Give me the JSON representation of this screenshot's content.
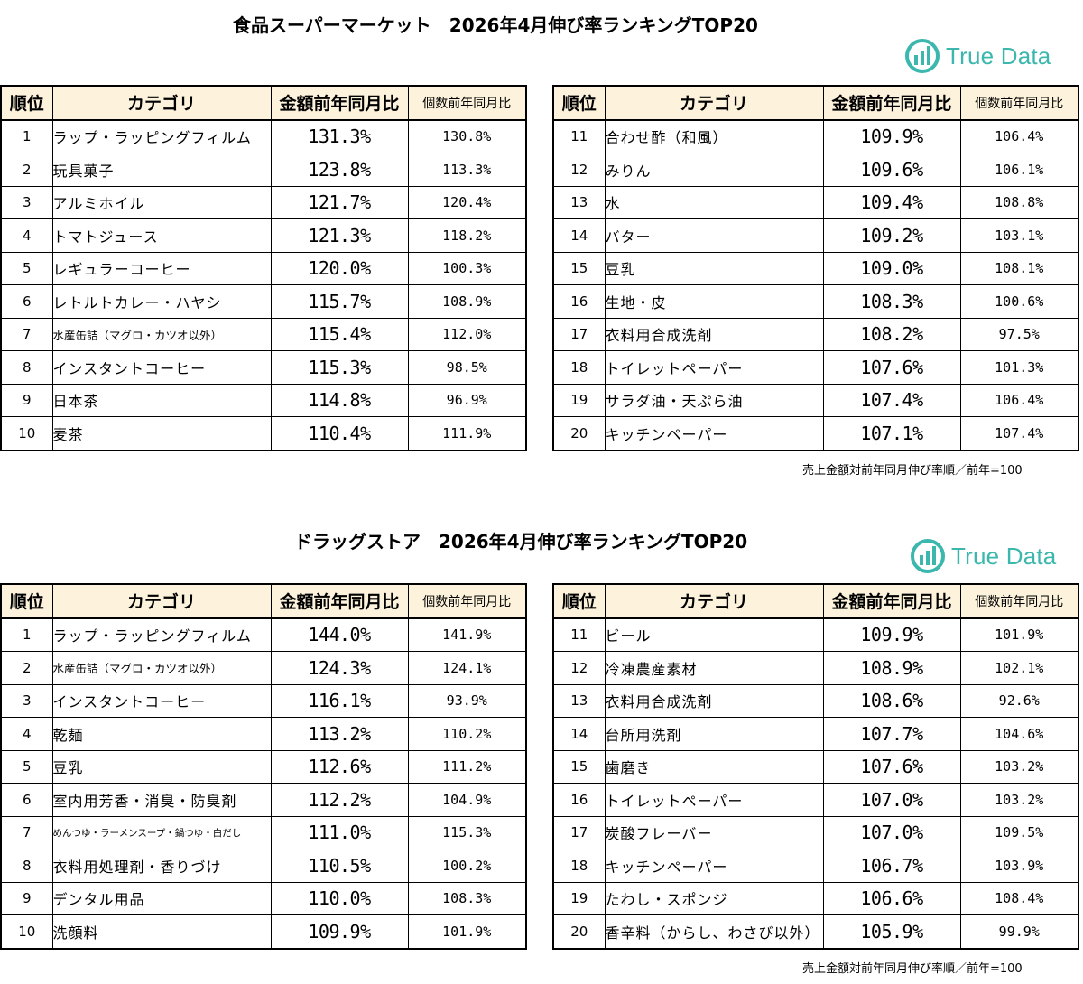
{
  "headers": {
    "rank": "順位",
    "category": "カテゴリ",
    "amount": "金額前年同月比",
    "count": "個数前年同月比"
  },
  "brand": {
    "name": "True Data",
    "color": "#3bb7ad"
  },
  "note": "売上金額対前年同月伸び率順／前年=100",
  "sections": [
    {
      "title": "食品スーパーマーケット　2026年4月伸び率ランキングTOP20",
      "left": [
        {
          "rank": "1",
          "category": "ラップ・ラッピングフィルム",
          "amount": "131.3%",
          "count": "130.8%"
        },
        {
          "rank": "2",
          "category": "玩具菓子",
          "amount": "123.8%",
          "count": "113.3%"
        },
        {
          "rank": "3",
          "category": "アルミホイル",
          "amount": "121.7%",
          "count": "120.4%"
        },
        {
          "rank": "4",
          "category": "トマトジュース",
          "amount": "121.3%",
          "count": "118.2%"
        },
        {
          "rank": "5",
          "category": "レギュラーコーヒー",
          "amount": "120.0%",
          "count": "100.3%"
        },
        {
          "rank": "6",
          "category": "レトルトカレー・ハヤシ",
          "amount": "115.7%",
          "count": "108.9%"
        },
        {
          "rank": "7",
          "category": "水産缶詰（マグロ・カツオ以外）",
          "amount": "115.4%",
          "count": "112.0%",
          "size": "small"
        },
        {
          "rank": "8",
          "category": "インスタントコーヒー",
          "amount": "115.3%",
          "count": "98.5%"
        },
        {
          "rank": "9",
          "category": "日本茶",
          "amount": "114.8%",
          "count": "96.9%"
        },
        {
          "rank": "10",
          "category": "麦茶",
          "amount": "110.4%",
          "count": "111.9%"
        }
      ],
      "right": [
        {
          "rank": "11",
          "category": "合わせ酢（和風）",
          "amount": "109.9%",
          "count": "106.4%"
        },
        {
          "rank": "12",
          "category": "みりん",
          "amount": "109.6%",
          "count": "106.1%"
        },
        {
          "rank": "13",
          "category": "水",
          "amount": "109.4%",
          "count": "108.8%"
        },
        {
          "rank": "14",
          "category": "バター",
          "amount": "109.2%",
          "count": "103.1%"
        },
        {
          "rank": "15",
          "category": "豆乳",
          "amount": "109.0%",
          "count": "108.1%"
        },
        {
          "rank": "16",
          "category": "生地・皮",
          "amount": "108.3%",
          "count": "100.6%"
        },
        {
          "rank": "17",
          "category": "衣料用合成洗剤",
          "amount": "108.2%",
          "count": "97.5%"
        },
        {
          "rank": "18",
          "category": "トイレットペーパー",
          "amount": "107.6%",
          "count": "101.3%"
        },
        {
          "rank": "19",
          "category": "サラダ油・天ぷら油",
          "amount": "107.4%",
          "count": "106.4%"
        },
        {
          "rank": "20",
          "category": "キッチンペーパー",
          "amount": "107.1%",
          "count": "107.4%"
        }
      ]
    },
    {
      "title": "ドラッグストア　2026年4月伸び率ランキングTOP20",
      "left": [
        {
          "rank": "1",
          "category": "ラップ・ラッピングフィルム",
          "amount": "144.0%",
          "count": "141.9%"
        },
        {
          "rank": "2",
          "category": "水産缶詰（マグロ・カツオ以外）",
          "amount": "124.3%",
          "count": "124.1%",
          "size": "small"
        },
        {
          "rank": "3",
          "category": "インスタントコーヒー",
          "amount": "116.1%",
          "count": "93.9%"
        },
        {
          "rank": "4",
          "category": "乾麺",
          "amount": "113.2%",
          "count": "110.2%"
        },
        {
          "rank": "5",
          "category": "豆乳",
          "amount": "112.6%",
          "count": "111.2%"
        },
        {
          "rank": "6",
          "category": "室内用芳香・消臭・防臭剤",
          "amount": "112.2%",
          "count": "104.9%"
        },
        {
          "rank": "7",
          "category": "めんつゆ・ラーメンスープ・鍋つゆ・白だし",
          "amount": "111.0%",
          "count": "115.3%",
          "size": "tiny"
        },
        {
          "rank": "8",
          "category": "衣料用処理剤・香りづけ",
          "amount": "110.5%",
          "count": "100.2%"
        },
        {
          "rank": "9",
          "category": "デンタル用品",
          "amount": "110.0%",
          "count": "108.3%"
        },
        {
          "rank": "10",
          "category": "洗顔料",
          "amount": "109.9%",
          "count": "101.9%"
        }
      ],
      "right": [
        {
          "rank": "11",
          "category": "ビール",
          "amount": "109.9%",
          "count": "101.9%"
        },
        {
          "rank": "12",
          "category": "冷凍農産素材",
          "amount": "108.9%",
          "count": "102.1%"
        },
        {
          "rank": "13",
          "category": "衣料用合成洗剤",
          "amount": "108.6%",
          "count": "92.6%"
        },
        {
          "rank": "14",
          "category": "台所用洗剤",
          "amount": "107.7%",
          "count": "104.6%"
        },
        {
          "rank": "15",
          "category": "歯磨き",
          "amount": "107.6%",
          "count": "103.2%"
        },
        {
          "rank": "16",
          "category": "トイレットペーパー",
          "amount": "107.0%",
          "count": "103.2%"
        },
        {
          "rank": "17",
          "category": "炭酸フレーバー",
          "amount": "107.0%",
          "count": "109.5%"
        },
        {
          "rank": "18",
          "category": "キッチンペーパー",
          "amount": "106.7%",
          "count": "103.9%"
        },
        {
          "rank": "19",
          "category": "たわし・スポンジ",
          "amount": "106.6%",
          "count": "108.4%"
        },
        {
          "rank": "20",
          "category": "香辛料（からし、わさび以外）",
          "amount": "105.9%",
          "count": "99.9%"
        }
      ]
    }
  ]
}
